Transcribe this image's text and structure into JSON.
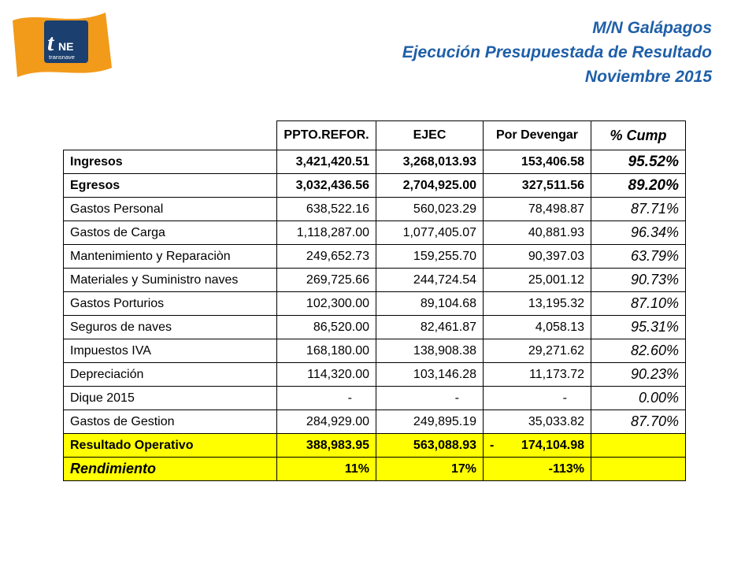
{
  "logo": {
    "brand": "tne",
    "subtitle": "transnave",
    "colors": {
      "flag": "#f29a1a",
      "badge": "#1b3f6e"
    }
  },
  "heading": {
    "line1": "M/N Galápagos",
    "line2": "Ejecución Presupuestada de Resultado",
    "line3": "Noviembre 2015",
    "color": "#1f5fa8"
  },
  "table": {
    "headers": {
      "budget": "PPTO.REFOR.",
      "executed": "EJEC",
      "pending": "Por Devengar",
      "pct": "% Cump"
    },
    "rows": [
      {
        "label": "Ingresos",
        "budget": "3,421,420.51",
        "executed": "3,268,013.93",
        "pending": "153,406.58",
        "pct": "95.52%"
      },
      {
        "label": "Egresos",
        "budget": "3,032,436.56",
        "executed": "2,704,925.00",
        "pending": "327,511.56",
        "pct": "89.20%"
      },
      {
        "label": "Gastos Personal",
        "budget": "638,522.16",
        "executed": "560,023.29",
        "pending": "78,498.87",
        "pct": "87.71%"
      },
      {
        "label": "Gastos  de Carga",
        "budget": "1,118,287.00",
        "executed": "1,077,405.07",
        "pending": "40,881.93",
        "pct": "96.34%"
      },
      {
        "label": "Mantenimiento y Reparaciòn",
        "budget": "249,652.73",
        "executed": "159,255.70",
        "pending": "90,397.03",
        "pct": "63.79%"
      },
      {
        "label": "Materiales y Suministro naves",
        "budget": "269,725.66",
        "executed": "244,724.54",
        "pending": "25,001.12",
        "pct": "90.73%"
      },
      {
        "label": "Gastos Porturios",
        "budget": "102,300.00",
        "executed": "89,104.68",
        "pending": "13,195.32",
        "pct": "87.10%"
      },
      {
        "label": "Seguros de naves",
        "budget": "86,520.00",
        "executed": "82,461.87",
        "pending": "4,058.13",
        "pct": "95.31%"
      },
      {
        "label": "Impuestos IVA",
        "budget": "168,180.00",
        "executed": "138,908.38",
        "pending": "29,271.62",
        "pct": "82.60%"
      },
      {
        "label": "Depreciación",
        "budget": "114,320.00",
        "executed": "103,146.28",
        "pending": "11,173.72",
        "pct": "90.23%"
      },
      {
        "label": "Dique  2015",
        "budget": "-",
        "executed": "-",
        "pending": "-",
        "pct": "0.00%"
      },
      {
        "label": "Gastos de Gestion",
        "budget": "284,929.00",
        "executed": "249,895.19",
        "pending": "35,033.82",
        "pct": "87.70%"
      }
    ],
    "operating": {
      "label": "Resultado Operativo",
      "budget": "388,983.95",
      "executed": "563,088.93",
      "pending_sign": "-",
      "pending": "174,104.98",
      "pct": ""
    },
    "yield": {
      "label": "Rendimiento",
      "budget": "11%",
      "executed": "17%",
      "pending": "-113%",
      "pct": ""
    },
    "highlight_color": "#ffff00"
  }
}
